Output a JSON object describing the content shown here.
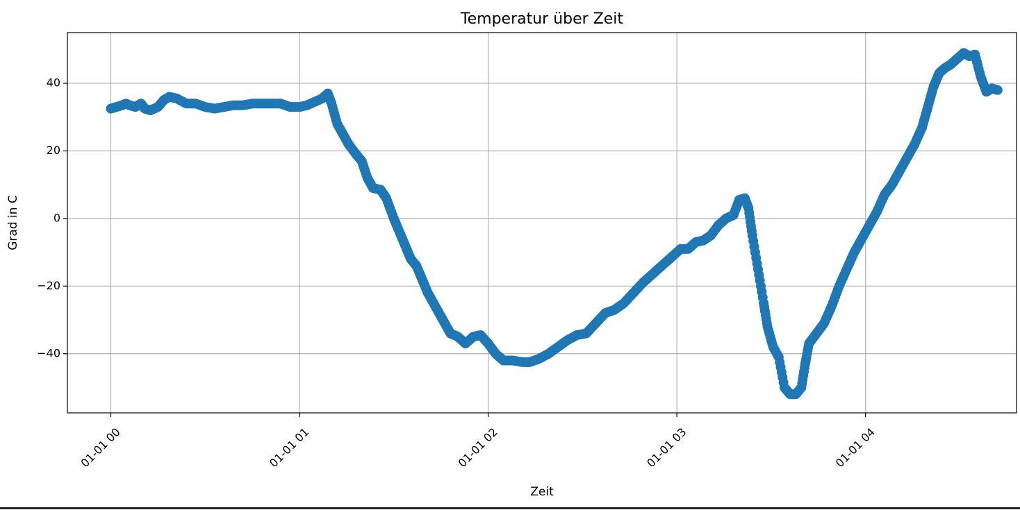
{
  "chart_data": {
    "type": "scatter",
    "title": "Temperatur über Zeit",
    "xlabel": "Zeit",
    "ylabel": "Grad in C",
    "x_ticks": [
      "01-01 00",
      "01-01 01",
      "01-01 02",
      "01-01 03",
      "01-01 04"
    ],
    "x_tick_hours": [
      0,
      1,
      2,
      3,
      4
    ],
    "xlim_hours": [
      -0.23,
      4.8
    ],
    "y_ticks": [
      -40,
      -20,
      0,
      20,
      40
    ],
    "ylim": [
      -57.5,
      55
    ],
    "grid": true,
    "marker_color": "#1f77b4",
    "series": [
      {
        "points_hours_celsius": [
          [
            0.0,
            32.5
          ],
          [
            0.03,
            33
          ],
          [
            0.06,
            33.5
          ],
          [
            0.08,
            34
          ],
          [
            0.1,
            33.5
          ],
          [
            0.13,
            33
          ],
          [
            0.16,
            34
          ],
          [
            0.18,
            32.5
          ],
          [
            0.21,
            32
          ],
          [
            0.25,
            33
          ],
          [
            0.28,
            35
          ],
          [
            0.31,
            36
          ],
          [
            0.35,
            35.5
          ],
          [
            0.4,
            34
          ],
          [
            0.45,
            34
          ],
          [
            0.5,
            33
          ],
          [
            0.55,
            32.5
          ],
          [
            0.6,
            33
          ],
          [
            0.65,
            33.5
          ],
          [
            0.7,
            33.5
          ],
          [
            0.75,
            34
          ],
          [
            0.8,
            34
          ],
          [
            0.85,
            34
          ],
          [
            0.9,
            34
          ],
          [
            0.95,
            33
          ],
          [
            1.0,
            33
          ],
          [
            1.04,
            33.5
          ],
          [
            1.08,
            34.5
          ],
          [
            1.12,
            35.5
          ],
          [
            1.15,
            37
          ],
          [
            1.17,
            34
          ],
          [
            1.2,
            28
          ],
          [
            1.23,
            25
          ],
          [
            1.26,
            22
          ],
          [
            1.3,
            19
          ],
          [
            1.33,
            17
          ],
          [
            1.36,
            12
          ],
          [
            1.39,
            9
          ],
          [
            1.43,
            8.5
          ],
          [
            1.46,
            6
          ],
          [
            1.5,
            0
          ],
          [
            1.53,
            -4
          ],
          [
            1.56,
            -8
          ],
          [
            1.59,
            -12
          ],
          [
            1.62,
            -14
          ],
          [
            1.65,
            -18
          ],
          [
            1.68,
            -22
          ],
          [
            1.71,
            -25
          ],
          [
            1.74,
            -28
          ],
          [
            1.77,
            -31
          ],
          [
            1.8,
            -34
          ],
          [
            1.84,
            -35
          ],
          [
            1.88,
            -37
          ],
          [
            1.92,
            -35
          ],
          [
            1.96,
            -34.5
          ],
          [
            2.0,
            -37
          ],
          [
            2.04,
            -40
          ],
          [
            2.08,
            -42
          ],
          [
            2.13,
            -42
          ],
          [
            2.18,
            -42.5
          ],
          [
            2.22,
            -42.5
          ],
          [
            2.27,
            -41.5
          ],
          [
            2.32,
            -40
          ],
          [
            2.37,
            -38
          ],
          [
            2.42,
            -36
          ],
          [
            2.47,
            -34.5
          ],
          [
            2.52,
            -34
          ],
          [
            2.57,
            -31
          ],
          [
            2.62,
            -28
          ],
          [
            2.67,
            -27
          ],
          [
            2.72,
            -25
          ],
          [
            2.77,
            -22
          ],
          [
            2.82,
            -19
          ],
          [
            2.86,
            -17
          ],
          [
            2.9,
            -15
          ],
          [
            2.94,
            -13
          ],
          [
            2.98,
            -11
          ],
          [
            3.02,
            -9
          ],
          [
            3.06,
            -9
          ],
          [
            3.1,
            -7
          ],
          [
            3.14,
            -6.5
          ],
          [
            3.18,
            -5
          ],
          [
            3.22,
            -2
          ],
          [
            3.26,
            0
          ],
          [
            3.3,
            1
          ],
          [
            3.33,
            5.5
          ],
          [
            3.36,
            6
          ],
          [
            3.38,
            3
          ],
          [
            3.4,
            -5
          ],
          [
            3.43,
            -15
          ],
          [
            3.46,
            -25
          ],
          [
            3.48,
            -32
          ],
          [
            3.51,
            -38
          ],
          [
            3.54,
            -41
          ],
          [
            3.57,
            -50
          ],
          [
            3.6,
            -52
          ],
          [
            3.63,
            -52
          ],
          [
            3.66,
            -50
          ],
          [
            3.68,
            -43
          ],
          [
            3.7,
            -37
          ],
          [
            3.74,
            -34
          ],
          [
            3.78,
            -31
          ],
          [
            3.82,
            -26
          ],
          [
            3.86,
            -20
          ],
          [
            3.9,
            -15
          ],
          [
            3.94,
            -10
          ],
          [
            3.98,
            -6
          ],
          [
            4.02,
            -2
          ],
          [
            4.06,
            2
          ],
          [
            4.1,
            7
          ],
          [
            4.14,
            10
          ],
          [
            4.18,
            14
          ],
          [
            4.22,
            18
          ],
          [
            4.26,
            22
          ],
          [
            4.3,
            27
          ],
          [
            4.33,
            33
          ],
          [
            4.36,
            39
          ],
          [
            4.39,
            43
          ],
          [
            4.42,
            44.5
          ],
          [
            4.45,
            45.5
          ],
          [
            4.48,
            47
          ],
          [
            4.52,
            49
          ],
          [
            4.55,
            48
          ],
          [
            4.58,
            48.5
          ],
          [
            4.61,
            42
          ],
          [
            4.64,
            37.5
          ],
          [
            4.67,
            38.5
          ],
          [
            4.7,
            38
          ]
        ]
      }
    ]
  }
}
